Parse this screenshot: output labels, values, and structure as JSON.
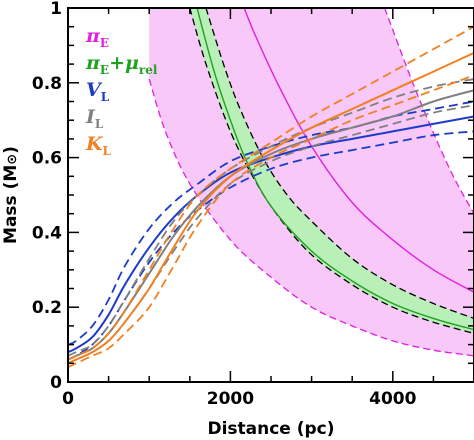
{
  "chart_data": {
    "type": "line",
    "xlabel": "Distance (pc)",
    "ylabel": "Mass (M",
    "ylabel_symbol": "⊙",
    "ylabel_close": ")",
    "xlim": [
      0,
      5000
    ],
    "ylim": [
      0,
      1
    ],
    "xticks": [
      0,
      2000,
      4000
    ],
    "xtick_labels": [
      "0",
      "2000",
      "4000"
    ],
    "yticks": [
      0,
      0.2,
      0.4,
      0.6,
      0.8,
      1
    ],
    "ytick_labels": [
      "0",
      "0.2",
      "0.4",
      "0.6",
      "0.8",
      "1"
    ],
    "grid": false,
    "legend_position": "top-right",
    "legend": [
      {
        "symbol": "π",
        "sub": "E",
        "suffix": "",
        "color": "#e020e0"
      },
      {
        "symbol": "π",
        "sub": "E",
        "suffix": "+μ",
        "suffix_sub": "rel",
        "color": "#22a022"
      },
      {
        "symbol": "V",
        "sub": "L",
        "suffix": "",
        "color": "#1c3cc8"
      },
      {
        "symbol": "I",
        "sub": "L",
        "suffix": "",
        "color": "#808080"
      },
      {
        "symbol": "K",
        "sub": "L",
        "suffix": "",
        "color": "#f08020"
      }
    ],
    "series": [
      {
        "band": true,
        "fill": "#f8c8f8",
        "color": "#e020e0",
        "x_central": [
          2170,
          2300,
          2600,
          3000,
          3500,
          4000,
          4500,
          5000
        ],
        "central": [
          1.0,
          0.93,
          0.79,
          0.63,
          0.48,
          0.38,
          0.3,
          0.24
        ],
        "x_lower": [
          1000,
          1200,
          1500,
          2000,
          2500,
          3000,
          3500,
          4000,
          4500,
          5000
        ],
        "lower": [
          0.81,
          0.67,
          0.53,
          0.38,
          0.28,
          0.2,
          0.15,
          0.11,
          0.085,
          0.07
        ],
        "x_upper": [
          3900,
          4300,
          4700,
          5000
        ],
        "upper": [
          1.0,
          0.77,
          0.57,
          0.45
        ]
      },
      {
        "band": true,
        "fill": "#b8f0b8",
        "color": "#22a022",
        "x_central": [
          1590,
          1800,
          2000,
          2200,
          2500,
          3000,
          3500,
          4000,
          4500,
          5000
        ],
        "central": [
          1.0,
          0.83,
          0.7,
          0.59,
          0.47,
          0.35,
          0.27,
          0.21,
          0.17,
          0.14
        ],
        "x_lower": [
          1500,
          1700,
          2000,
          2300,
          2600,
          3000,
          3500,
          4000,
          4500,
          5000
        ],
        "lower": [
          1.0,
          0.85,
          0.67,
          0.54,
          0.44,
          0.34,
          0.26,
          0.2,
          0.16,
          0.13
        ],
        "x_upper": [
          1700,
          1900,
          2100,
          2400,
          2700,
          3000,
          3500,
          4000,
          4500,
          5000
        ],
        "upper": [
          1.0,
          0.86,
          0.74,
          0.6,
          0.5,
          0.43,
          0.33,
          0.26,
          0.21,
          0.17
        ]
      },
      {
        "color": "#1c3cc8",
        "x": [
          0,
          100,
          300,
          500,
          700,
          1000,
          1300,
          1600,
          2000,
          2500,
          3000,
          3500,
          4000,
          4500,
          5000
        ],
        "central": [
          0.08,
          0.09,
          0.12,
          0.18,
          0.26,
          0.36,
          0.44,
          0.5,
          0.56,
          0.6,
          0.63,
          0.65,
          0.67,
          0.69,
          0.71
        ],
        "lower": [
          0.06,
          0.07,
          0.1,
          0.15,
          0.22,
          0.32,
          0.4,
          0.46,
          0.52,
          0.57,
          0.6,
          0.62,
          0.64,
          0.66,
          0.67
        ],
        "upper": [
          0.1,
          0.11,
          0.15,
          0.22,
          0.31,
          0.41,
          0.48,
          0.53,
          0.59,
          0.63,
          0.66,
          0.68,
          0.71,
          0.73,
          0.75
        ]
      },
      {
        "color": "#808080",
        "x": [
          0,
          100,
          300,
          500,
          700,
          1000,
          1300,
          1600,
          2000,
          2500,
          3000,
          3500,
          4000,
          4500,
          5000
        ],
        "central": [
          0.06,
          0.07,
          0.09,
          0.13,
          0.19,
          0.29,
          0.39,
          0.47,
          0.55,
          0.61,
          0.65,
          0.68,
          0.71,
          0.75,
          0.78
        ],
        "lower": [
          0.05,
          0.06,
          0.08,
          0.11,
          0.16,
          0.25,
          0.35,
          0.44,
          0.53,
          0.59,
          0.63,
          0.66,
          0.69,
          0.72,
          0.74
        ],
        "upper": [
          0.07,
          0.08,
          0.1,
          0.15,
          0.22,
          0.33,
          0.43,
          0.5,
          0.57,
          0.63,
          0.68,
          0.72,
          0.76,
          0.79,
          0.81
        ]
      },
      {
        "color": "#f08020",
        "x": [
          0,
          100,
          300,
          500,
          700,
          1000,
          1300,
          1600,
          2000,
          2500,
          3000,
          3500,
          4000,
          4500,
          5000
        ],
        "central": [
          0.05,
          0.06,
          0.08,
          0.11,
          0.16,
          0.25,
          0.36,
          0.46,
          0.55,
          0.62,
          0.68,
          0.73,
          0.78,
          0.83,
          0.88
        ],
        "lower": [
          0.04,
          0.05,
          0.07,
          0.09,
          0.13,
          0.2,
          0.31,
          0.42,
          0.53,
          0.6,
          0.65,
          0.7,
          0.74,
          0.78,
          0.82
        ],
        "upper": [
          0.06,
          0.07,
          0.09,
          0.13,
          0.19,
          0.3,
          0.41,
          0.5,
          0.57,
          0.64,
          0.71,
          0.77,
          0.83,
          0.89,
          0.95
        ]
      }
    ]
  }
}
